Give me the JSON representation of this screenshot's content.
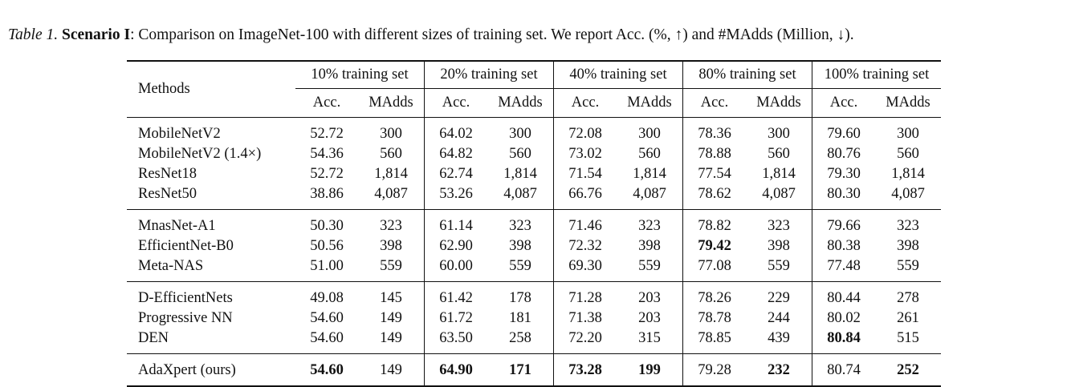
{
  "caption": {
    "label": "Table 1.",
    "scenario": "Scenario I",
    "text": ": Comparison on ImageNet-100 with different sizes of training set. We report Acc. (%, ↑) and #MAdds (Million, ↓)."
  },
  "header": {
    "methods": "Methods",
    "groups": [
      "10% training set",
      "20% training set",
      "40% training set",
      "80% training set",
      "100% training set"
    ],
    "acc": "Acc.",
    "madds": "MAdds"
  },
  "sections": [
    {
      "rows": [
        {
          "method": "MobileNetV2",
          "values": [
            "52.72",
            "300",
            "64.02",
            "300",
            "72.08",
            "300",
            "78.36",
            "300",
            "79.60",
            "300"
          ],
          "bold": []
        },
        {
          "method": "MobileNetV2 (1.4×)",
          "values": [
            "54.36",
            "560",
            "64.82",
            "560",
            "73.02",
            "560",
            "78.88",
            "560",
            "80.76",
            "560"
          ],
          "bold": []
        },
        {
          "method": "ResNet18",
          "values": [
            "52.72",
            "1,814",
            "62.74",
            "1,814",
            "71.54",
            "1,814",
            "77.54",
            "1,814",
            "79.30",
            "1,814"
          ],
          "bold": []
        },
        {
          "method": "ResNet50",
          "values": [
            "38.86",
            "4,087",
            "53.26",
            "4,087",
            "66.76",
            "4,087",
            "78.62",
            "4,087",
            "80.30",
            "4,087"
          ],
          "bold": []
        }
      ]
    },
    {
      "rows": [
        {
          "method": "MnasNet-A1",
          "values": [
            "50.30",
            "323",
            "61.14",
            "323",
            "71.46",
            "323",
            "78.82",
            "323",
            "79.66",
            "323"
          ],
          "bold": []
        },
        {
          "method": "EfficientNet-B0",
          "values": [
            "50.56",
            "398",
            "62.90",
            "398",
            "72.32",
            "398",
            "79.42",
            "398",
            "80.38",
            "398"
          ],
          "bold": [
            6
          ]
        },
        {
          "method": "Meta-NAS",
          "values": [
            "51.00",
            "559",
            "60.00",
            "559",
            "69.30",
            "559",
            "77.08",
            "559",
            "77.48",
            "559"
          ],
          "bold": []
        }
      ]
    },
    {
      "rows": [
        {
          "method": "D-EfficientNets",
          "values": [
            "49.08",
            "145",
            "61.42",
            "178",
            "71.28",
            "203",
            "78.26",
            "229",
            "80.44",
            "278"
          ],
          "bold": []
        },
        {
          "method": "Progressive NN",
          "values": [
            "54.60",
            "149",
            "61.72",
            "181",
            "71.38",
            "203",
            "78.78",
            "244",
            "80.02",
            "261"
          ],
          "bold": []
        },
        {
          "method": "DEN",
          "values": [
            "54.60",
            "149",
            "63.50",
            "258",
            "72.20",
            "315",
            "78.85",
            "439",
            "80.84",
            "515"
          ],
          "bold": [
            8
          ]
        }
      ]
    },
    {
      "rows": [
        {
          "method": "AdaXpert (ours)",
          "values": [
            "54.60",
            "149",
            "64.90",
            "171",
            "73.28",
            "199",
            "79.28",
            "232",
            "80.74",
            "252"
          ],
          "bold": [
            0,
            2,
            3,
            4,
            5,
            7,
            9
          ]
        }
      ]
    }
  ]
}
